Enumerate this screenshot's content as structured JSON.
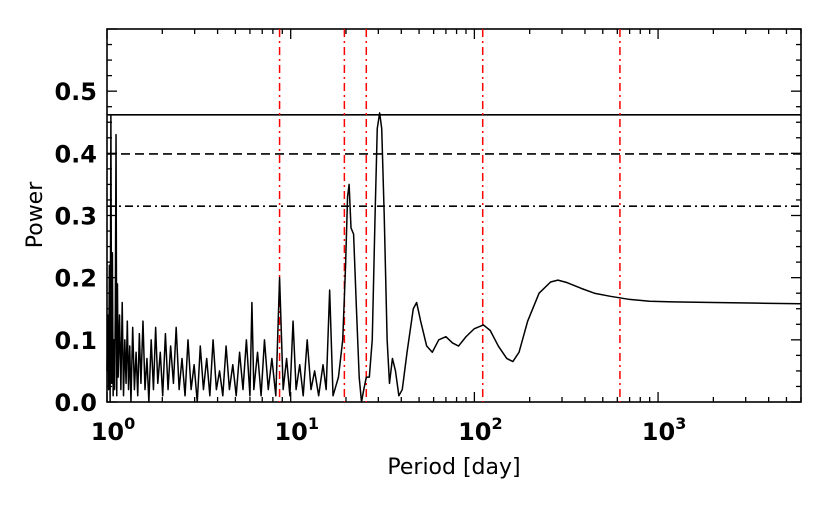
{
  "chart_data": {
    "type": "line",
    "title": "",
    "xlabel": "Period [day]",
    "ylabel": "Power",
    "xscale": "log",
    "xlim": [
      1,
      6000
    ],
    "ylim": [
      0,
      0.6
    ],
    "grid": false,
    "xticks": [
      {
        "value": 1,
        "base": "10",
        "exp": "0"
      },
      {
        "value": 10,
        "base": "10",
        "exp": "1"
      },
      {
        "value": 100,
        "base": "10",
        "exp": "2"
      },
      {
        "value": 1000,
        "base": "10",
        "exp": "3"
      }
    ],
    "yticks": [
      {
        "value": 0.0,
        "label": "0.0"
      },
      {
        "value": 0.1,
        "label": "0.1"
      },
      {
        "value": 0.2,
        "label": "0.2"
      },
      {
        "value": 0.3,
        "label": "0.3"
      },
      {
        "value": 0.4,
        "label": "0.4"
      },
      {
        "value": 0.5,
        "label": "0.5"
      }
    ],
    "significance_levels": [
      {
        "value": 0.462,
        "style": "solid",
        "color": "#000000"
      },
      {
        "value": 0.399,
        "style": "dashed",
        "color": "#000000"
      },
      {
        "value": 0.315,
        "style": "dashdot",
        "color": "#000000"
      }
    ],
    "vertical_markers": [
      {
        "x": 8.7,
        "color": "#ff0000",
        "style": "dashdot"
      },
      {
        "x": 19.6,
        "color": "#ff0000",
        "style": "dashdot"
      },
      {
        "x": 25.8,
        "color": "#ff0000",
        "style": "dashdot"
      },
      {
        "x": 111,
        "color": "#ff0000",
        "style": "dashdot"
      },
      {
        "x": 620,
        "color": "#ff0000",
        "style": "dashdot"
      }
    ],
    "series": [
      {
        "color": "#000000",
        "points": [
          [
            1.0,
            0.05
          ],
          [
            1.01,
            0.14
          ],
          [
            1.02,
            0.02
          ],
          [
            1.03,
            0.22
          ],
          [
            1.04,
            0.0
          ],
          [
            1.05,
            0.46
          ],
          [
            1.06,
            0.03
          ],
          [
            1.07,
            0.24
          ],
          [
            1.08,
            0.01
          ],
          [
            1.09,
            0.1
          ],
          [
            1.1,
            0.02
          ],
          [
            1.11,
            0.15
          ],
          [
            1.12,
            0.43
          ],
          [
            1.13,
            0.01
          ],
          [
            1.14,
            0.19
          ],
          [
            1.15,
            0.04
          ],
          [
            1.17,
            0.14
          ],
          [
            1.19,
            0.02
          ],
          [
            1.21,
            0.16
          ],
          [
            1.23,
            0.01
          ],
          [
            1.25,
            0.1
          ],
          [
            1.27,
            0.03
          ],
          [
            1.29,
            0.13
          ],
          [
            1.31,
            0.02
          ],
          [
            1.33,
            0.09
          ],
          [
            1.35,
            0.0
          ],
          [
            1.38,
            0.12
          ],
          [
            1.41,
            0.02
          ],
          [
            1.44,
            0.08
          ],
          [
            1.47,
            0.01
          ],
          [
            1.5,
            0.11
          ],
          [
            1.53,
            0.03
          ],
          [
            1.57,
            0.13
          ],
          [
            1.61,
            0.02
          ],
          [
            1.65,
            0.07
          ],
          [
            1.69,
            0.0
          ],
          [
            1.74,
            0.1
          ],
          [
            1.79,
            0.02
          ],
          [
            1.84,
            0.12
          ],
          [
            1.89,
            0.03
          ],
          [
            1.95,
            0.08
          ],
          [
            2.01,
            0.01
          ],
          [
            2.08,
            0.11
          ],
          [
            2.15,
            0.02
          ],
          [
            2.22,
            0.09
          ],
          [
            2.3,
            0.03
          ],
          [
            2.38,
            0.12
          ],
          [
            2.47,
            0.02
          ],
          [
            2.56,
            0.07
          ],
          [
            2.66,
            0.01
          ],
          [
            2.76,
            0.1
          ],
          [
            2.87,
            0.02
          ],
          [
            2.98,
            0.06
          ],
          [
            3.1,
            0.0
          ],
          [
            3.22,
            0.09
          ],
          [
            3.35,
            0.02
          ],
          [
            3.49,
            0.07
          ],
          [
            3.63,
            0.01
          ],
          [
            3.78,
            0.1
          ],
          [
            3.94,
            0.02
          ],
          [
            4.1,
            0.05
          ],
          [
            4.27,
            0.01
          ],
          [
            4.45,
            0.09
          ],
          [
            4.64,
            0.02
          ],
          [
            4.84,
            0.06
          ],
          [
            5.05,
            0.01
          ],
          [
            5.27,
            0.08
          ],
          [
            5.5,
            0.02
          ],
          [
            5.74,
            0.1
          ],
          [
            6.0,
            0.01
          ],
          [
            6.15,
            0.16
          ],
          [
            6.3,
            0.02
          ],
          [
            6.6,
            0.08
          ],
          [
            6.9,
            0.01
          ],
          [
            7.2,
            0.1
          ],
          [
            7.55,
            0.02
          ],
          [
            7.9,
            0.07
          ],
          [
            8.3,
            0.01
          ],
          [
            8.7,
            0.2
          ],
          [
            9.1,
            0.02
          ],
          [
            9.5,
            0.07
          ],
          [
            9.9,
            0.01
          ],
          [
            10.3,
            0.13
          ],
          [
            10.7,
            0.02
          ],
          [
            11.2,
            0.06
          ],
          [
            11.7,
            0.01
          ],
          [
            12.3,
            0.1
          ],
          [
            12.9,
            0.02
          ],
          [
            13.5,
            0.05
          ],
          [
            14.2,
            0.01
          ],
          [
            15.0,
            0.06
          ],
          [
            15.6,
            0.02
          ],
          [
            16.3,
            0.18
          ],
          [
            17.0,
            0.01
          ],
          [
            18.2,
            0.04
          ],
          [
            19.2,
            0.1
          ],
          [
            19.9,
            0.22
          ],
          [
            20.4,
            0.33
          ],
          [
            20.8,
            0.35
          ],
          [
            21.3,
            0.28
          ],
          [
            22.0,
            0.27
          ],
          [
            22.8,
            0.15
          ],
          [
            23.6,
            0.04
          ],
          [
            24.3,
            0.0
          ],
          [
            25.0,
            0.02
          ],
          [
            25.8,
            0.04
          ],
          [
            26.8,
            0.04
          ],
          [
            27.8,
            0.1
          ],
          [
            28.8,
            0.3
          ],
          [
            29.6,
            0.44
          ],
          [
            30.5,
            0.465
          ],
          [
            31.3,
            0.44
          ],
          [
            32.3,
            0.3
          ],
          [
            33.5,
            0.1
          ],
          [
            34.5,
            0.03
          ],
          [
            35.8,
            0.07
          ],
          [
            37.2,
            0.05
          ],
          [
            38.8,
            0.01
          ],
          [
            40.5,
            0.02
          ],
          [
            43.0,
            0.08
          ],
          [
            46.5,
            0.15
          ],
          [
            48.5,
            0.16
          ],
          [
            51.0,
            0.13
          ],
          [
            55.0,
            0.09
          ],
          [
            59.0,
            0.08
          ],
          [
            64.0,
            0.1
          ],
          [
            70.0,
            0.105
          ],
          [
            76.0,
            0.095
          ],
          [
            82.0,
            0.09
          ],
          [
            90.0,
            0.105
          ],
          [
            100,
            0.118
          ],
          [
            112,
            0.124
          ],
          [
            122,
            0.115
          ],
          [
            135,
            0.09
          ],
          [
            150,
            0.07
          ],
          [
            162,
            0.065
          ],
          [
            175,
            0.08
          ],
          [
            195,
            0.13
          ],
          [
            225,
            0.175
          ],
          [
            260,
            0.193
          ],
          [
            285,
            0.196
          ],
          [
            320,
            0.192
          ],
          [
            380,
            0.183
          ],
          [
            450,
            0.175
          ],
          [
            550,
            0.17
          ],
          [
            700,
            0.165
          ],
          [
            900,
            0.162
          ],
          [
            1200,
            0.161
          ],
          [
            2000,
            0.16
          ],
          [
            3500,
            0.159
          ],
          [
            6000,
            0.158
          ]
        ]
      }
    ]
  }
}
